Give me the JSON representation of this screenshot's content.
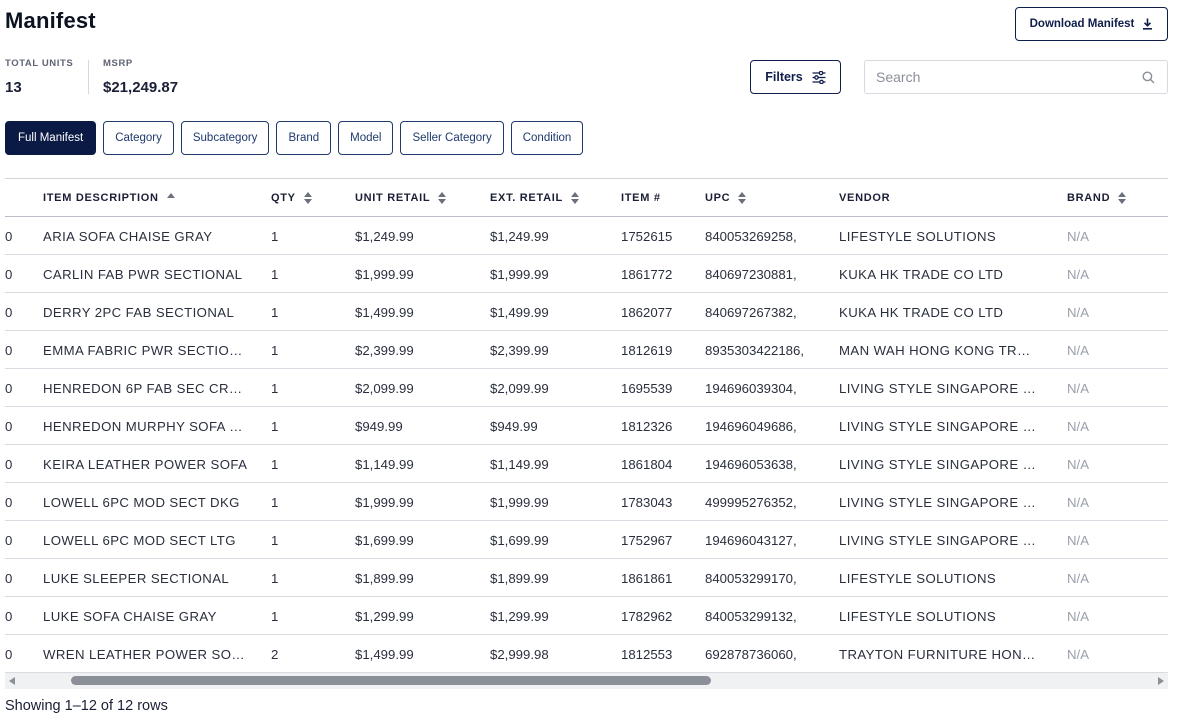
{
  "header": {
    "title": "Manifest",
    "download_label": "Download Manifest"
  },
  "stats": {
    "units_label": "TOTAL UNITS",
    "units_value": "13",
    "msrp_label": "MSRP",
    "msrp_value": "$21,249.87"
  },
  "toolbar": {
    "filters_label": "Filters",
    "search_placeholder": "Search"
  },
  "tabs": [
    {
      "label": "Full Manifest",
      "active": true
    },
    {
      "label": "Category"
    },
    {
      "label": "Subcategory"
    },
    {
      "label": "Brand"
    },
    {
      "label": "Model"
    },
    {
      "label": "Seller Category"
    },
    {
      "label": "Condition"
    }
  ],
  "table": {
    "columns": [
      "ITEM DESCRIPTION",
      "QTY",
      "UNIT RETAIL",
      "EXT. RETAIL",
      "ITEM #",
      "UPC",
      "VENDOR",
      "BRAND"
    ],
    "rows": [
      [
        "0",
        "ARIA SOFA CHAISE GRAY",
        "1",
        "$1,249.99",
        "$1,249.99",
        "1752615",
        "840053269258,",
        "LIFESTYLE SOLUTIONS",
        "N/A"
      ],
      [
        "0",
        "CARLIN FAB PWR SECTIONAL",
        "1",
        "$1,999.99",
        "$1,999.99",
        "1861772",
        "840697230881,",
        "KUKA HK TRADE CO LTD",
        "N/A"
      ],
      [
        "0",
        "DERRY 2PC FAB SECTIONAL",
        "1",
        "$1,499.99",
        "$1,499.99",
        "1862077",
        "840697267382,",
        "KUKA HK TRADE CO LTD",
        "N/A"
      ],
      [
        "0",
        "EMMA FABRIC PWR SECTIONAL",
        "1",
        "$2,399.99",
        "$2,399.99",
        "1812619",
        "8935303422186,",
        "MAN WAH HONG KONG TRAD...",
        "N/A"
      ],
      [
        "0",
        "HENREDON 6P FAB SEC CRE...",
        "1",
        "$2,099.99",
        "$2,099.99",
        "1695539",
        "194696039304,",
        "LIVING STYLE SINGAPORE PT",
        "N/A"
      ],
      [
        "0",
        "HENREDON MURPHY SOFA W...",
        "1",
        "$949.99",
        "$949.99",
        "1812326",
        "194696049686,",
        "LIVING STYLE SINGAPORE PT",
        "N/A"
      ],
      [
        "0",
        "KEIRA LEATHER POWER SOFA",
        "1",
        "$1,149.99",
        "$1,149.99",
        "1861804",
        "194696053638,",
        "LIVING STYLE SINGAPORE PT",
        "N/A"
      ],
      [
        "0",
        "LOWELL 6PC MOD SECT DKG",
        "1",
        "$1,999.99",
        "$1,999.99",
        "1783043",
        "499995276352,",
        "LIVING STYLE SINGAPORE PT",
        "N/A"
      ],
      [
        "0",
        "LOWELL 6PC MOD SECT LTG",
        "1",
        "$1,699.99",
        "$1,699.99",
        "1752967",
        "194696043127,",
        "LIVING STYLE SINGAPORE PT",
        "N/A"
      ],
      [
        "0",
        "LUKE SLEEPER SECTIONAL",
        "1",
        "$1,899.99",
        "$1,899.99",
        "1861861",
        "840053299170,",
        "LIFESTYLE SOLUTIONS",
        "N/A"
      ],
      [
        "0",
        "LUKE SOFA CHAISE GRAY",
        "1",
        "$1,299.99",
        "$1,299.99",
        "1782962",
        "840053299132,",
        "LIFESTYLE SOLUTIONS",
        "N/A"
      ],
      [
        "0",
        "WREN LEATHER POWER SOFA",
        "2",
        "$1,499.99",
        "$2,999.98",
        "1812553",
        "692878736060,",
        "TRAYTON FURNITURE HONG ...",
        "N/A"
      ]
    ]
  },
  "footer": {
    "status": "Showing 1–12 of 12 rows"
  },
  "colors": {
    "primary": "#0b1a45",
    "border": "#1f3a6e",
    "muted": "#9aa0aa"
  }
}
